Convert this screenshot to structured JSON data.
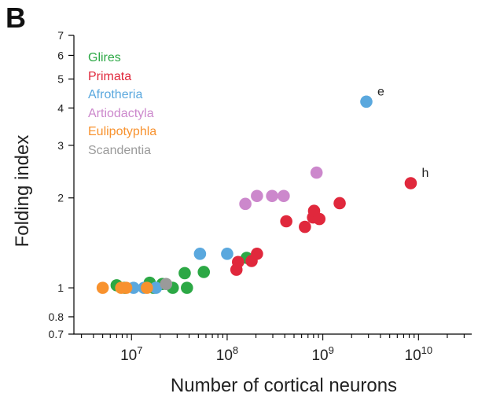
{
  "panel_label": "B",
  "colors": {
    "Glires": "#2ca845",
    "Primata": "#e0283c",
    "Afrotheria": "#5aa8de",
    "Artiodactyla": "#cc88cc",
    "Eulipotyphla": "#f8922e",
    "Scandentia": "#9a9a9a"
  },
  "chart_data": {
    "type": "scatter",
    "xlabel": "Number of cortical neurons",
    "ylabel": "Folding index",
    "xscale": "log",
    "yscale": "log",
    "xlim": [
      2500000,
      36000000000
    ],
    "ylim": [
      0.7,
      7
    ],
    "x_ticks": [
      {
        "value": 10000000,
        "base": "10",
        "exp": "7"
      },
      {
        "value": 100000000,
        "base": "10",
        "exp": "8"
      },
      {
        "value": 1000000000,
        "base": "10",
        "exp": "9"
      },
      {
        "value": 10000000000,
        "base": "10",
        "exp": "10"
      }
    ],
    "y_ticks": [
      {
        "value": 0.7,
        "label": "0.7"
      },
      {
        "value": 0.8,
        "label": "0.8"
      },
      {
        "value": 1,
        "label": "1"
      },
      {
        "value": 2,
        "label": "2"
      },
      {
        "value": 3,
        "label": "3"
      },
      {
        "value": 4,
        "label": "4"
      },
      {
        "value": 5,
        "label": "5"
      },
      {
        "value": 6,
        "label": "6"
      },
      {
        "value": 7,
        "label": "7"
      }
    ],
    "grid": false,
    "legend": "top-left",
    "series": [
      {
        "name": "Glires",
        "points": [
          [
            7000000,
            1.02
          ],
          [
            8500000,
            1.0
          ],
          [
            15500000,
            1.04
          ],
          [
            17000000,
            1.0
          ],
          [
            21000000,
            1.03
          ],
          [
            27000000,
            1.0
          ],
          [
            36000000,
            1.12
          ],
          [
            38000000,
            1.0
          ],
          [
            57000000,
            1.13
          ],
          [
            160000000,
            1.26
          ]
        ]
      },
      {
        "name": "Primata",
        "points": [
          [
            125000000,
            1.15
          ],
          [
            180000000,
            1.23
          ],
          [
            205000000,
            1.3
          ],
          [
            130000000,
            1.22
          ],
          [
            415000000,
            1.67
          ],
          [
            650000000,
            1.6
          ],
          [
            790000000,
            1.72
          ],
          [
            810000000,
            1.81
          ],
          [
            920000000,
            1.7
          ],
          [
            1500000000,
            1.92
          ],
          [
            8300000000,
            2.24
          ]
        ]
      },
      {
        "name": "Afrotheria",
        "points": [
          [
            10500000,
            1.0
          ],
          [
            13500000,
            1.0
          ],
          [
            18000000,
            1.0
          ],
          [
            52000000,
            1.3
          ],
          [
            100000000,
            1.3
          ],
          [
            2850000000,
            4.2
          ]
        ]
      },
      {
        "name": "Artiodactyla",
        "points": [
          [
            155000000,
            1.91
          ],
          [
            205000000,
            2.03
          ],
          [
            295000000,
            2.03
          ],
          [
            390000000,
            2.03
          ],
          [
            860000000,
            2.43
          ]
        ]
      },
      {
        "name": "Eulipotyphla",
        "points": [
          [
            5000000,
            1.0
          ],
          [
            7800000,
            1.0
          ],
          [
            8800000,
            1.0
          ],
          [
            14500000,
            1.0
          ]
        ]
      },
      {
        "name": "Scandentia",
        "points": [
          [
            23000000,
            1.03
          ]
        ]
      }
    ],
    "annotations": [
      {
        "text": "e",
        "x": 2850000000,
        "y": 4.2
      },
      {
        "text": "h",
        "x": 8300000000,
        "y": 2.24
      }
    ]
  }
}
